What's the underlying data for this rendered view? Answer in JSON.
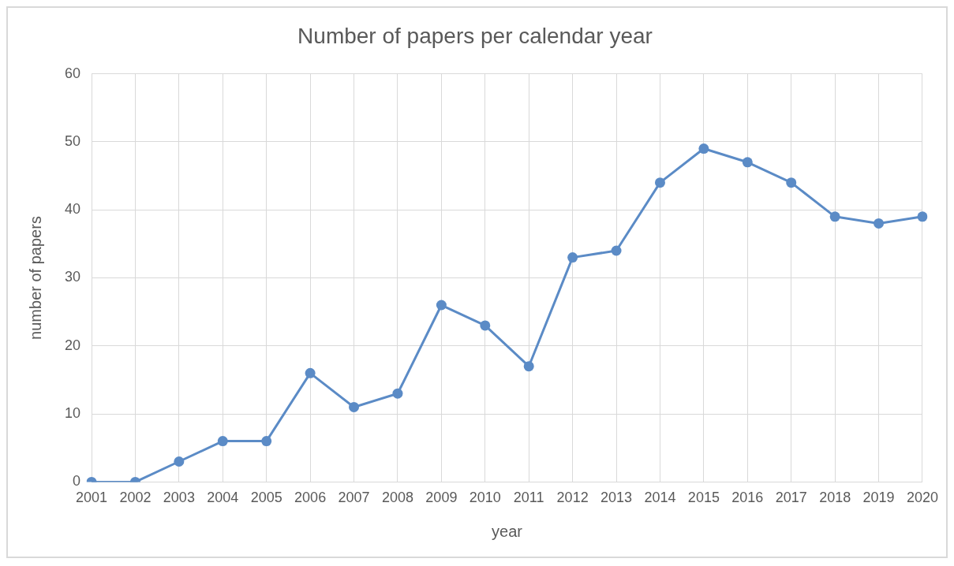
{
  "chart_data": {
    "type": "line",
    "title": "Number of papers per calendar year",
    "xlabel": "year",
    "ylabel": "number of papers",
    "categories": [
      "2001",
      "2002",
      "2003",
      "2004",
      "2005",
      "2006",
      "2007",
      "2008",
      "2009",
      "2010",
      "2011",
      "2012",
      "2013",
      "2014",
      "2015",
      "2016",
      "2017",
      "2018",
      "2019",
      "2020"
    ],
    "series": [
      {
        "color": "#5b8bc6",
        "values": [
          0,
          0,
          3,
          6,
          6,
          16,
          11,
          13,
          26,
          23,
          17,
          33,
          34,
          44,
          49,
          47,
          44,
          39,
          38,
          39
        ]
      }
    ],
    "ylim": [
      0,
      60
    ],
    "yticks": [
      0,
      10,
      20,
      30,
      40,
      50,
      60
    ],
    "grid": true,
    "legend": false,
    "marker": "circle",
    "line_style": "solid"
  }
}
